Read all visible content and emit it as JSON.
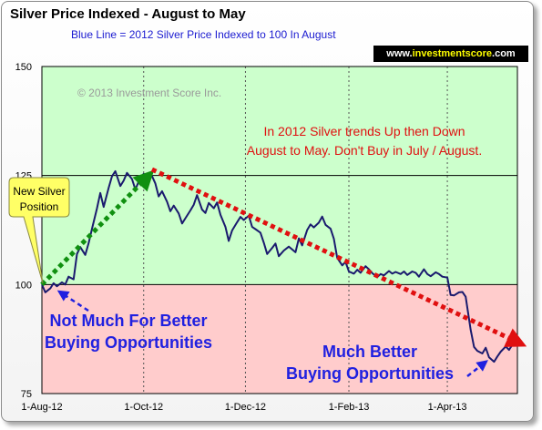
{
  "header": {
    "title": "Silver Price Indexed - August to May",
    "subtitle": "Blue Line =  2012 Silver Price Indexed to 100 In August",
    "brand_prefix": "www.",
    "brand_main": "investmentscore",
    "brand_suffix": ".com"
  },
  "colors": {
    "upper_zone": "#ccffcc",
    "lower_zone": "#ffcccc",
    "price_line": "#1a1a6e",
    "up_trend": "#109010",
    "down_trend": "#e01010",
    "annotation_blue": "#2020e0"
  },
  "chart_data": {
    "type": "line",
    "title": "Silver Price Indexed - August to May",
    "subtitle": "Blue Line =  2012 Silver Price Indexed to 100 In August",
    "xlabel": "",
    "ylabel": "",
    "xlim": [
      "2012-08-01",
      "2013-05-13"
    ],
    "ylim": [
      75,
      150
    ],
    "grid": true,
    "legend": "none",
    "x_tick_labels": [
      "1-Aug-12",
      "1-Oct-12",
      "1-Dec-12",
      "1-Feb-13",
      "1-Apr-13"
    ],
    "x_ticks": [
      "2012-08-01",
      "2012-10-01",
      "2012-12-01",
      "2013-02-01",
      "2013-04-01"
    ],
    "y_ticks": [
      75,
      100,
      125,
      150
    ],
    "zones": [
      {
        "from": 100,
        "to": 150,
        "color": "#ccffcc"
      },
      {
        "from": 75,
        "to": 100,
        "color": "#ffcccc"
      }
    ],
    "series": [
      {
        "color": "#1a1a6e",
        "x": [
          "2012-08-01",
          "2012-08-03",
          "2012-08-06",
          "2012-08-08",
          "2012-08-10",
          "2012-08-13",
          "2012-08-15",
          "2012-08-17",
          "2012-08-20",
          "2012-08-22",
          "2012-08-24",
          "2012-08-27",
          "2012-08-29",
          "2012-08-31",
          "2012-09-03",
          "2012-09-05",
          "2012-09-07",
          "2012-09-10",
          "2012-09-12",
          "2012-09-14",
          "2012-09-17",
          "2012-09-19",
          "2012-09-21",
          "2012-09-24",
          "2012-09-26",
          "2012-09-28",
          "2012-10-01",
          "2012-10-03",
          "2012-10-05",
          "2012-10-08",
          "2012-10-10",
          "2012-10-12",
          "2012-10-15",
          "2012-10-17",
          "2012-10-19",
          "2012-10-22",
          "2012-10-24",
          "2012-10-26",
          "2012-10-29",
          "2012-10-31",
          "2012-11-02",
          "2012-11-05",
          "2012-11-07",
          "2012-11-09",
          "2012-11-12",
          "2012-11-14",
          "2012-11-16",
          "2012-11-19",
          "2012-11-21",
          "2012-11-23",
          "2012-11-26",
          "2012-11-28",
          "2012-11-30",
          "2012-12-03",
          "2012-12-05",
          "2012-12-07",
          "2012-12-10",
          "2012-12-12",
          "2012-12-14",
          "2012-12-17",
          "2012-12-19",
          "2012-12-21",
          "2012-12-24",
          "2012-12-27",
          "2012-12-31",
          "2013-01-02",
          "2013-01-04",
          "2013-01-07",
          "2013-01-09",
          "2013-01-11",
          "2013-01-14",
          "2013-01-16",
          "2013-01-18",
          "2013-01-21",
          "2013-01-23",
          "2013-01-25",
          "2013-01-28",
          "2013-01-30",
          "2013-02-01",
          "2013-02-04",
          "2013-02-06",
          "2013-02-08",
          "2013-02-11",
          "2013-02-13",
          "2013-02-15",
          "2013-02-18",
          "2013-02-20",
          "2013-02-22",
          "2013-02-25",
          "2013-02-27",
          "2013-03-01",
          "2013-03-04",
          "2013-03-06",
          "2013-03-08",
          "2013-03-11",
          "2013-03-13",
          "2013-03-15",
          "2013-03-18",
          "2013-03-20",
          "2013-03-22",
          "2013-03-25",
          "2013-03-27",
          "2013-03-29",
          "2013-04-01",
          "2013-04-03",
          "2013-04-05",
          "2013-04-08",
          "2013-04-10",
          "2013-04-12",
          "2013-04-15",
          "2013-04-17",
          "2013-04-19",
          "2013-04-22",
          "2013-04-24",
          "2013-04-26",
          "2013-04-29",
          "2013-05-01",
          "2013-05-03",
          "2013-05-06",
          "2013-05-08",
          "2013-05-10"
        ],
        "values": [
          100.0,
          98.2,
          99.1,
          100.3,
          99.6,
          100.5,
          100.0,
          101.8,
          101.2,
          107.0,
          108.6,
          106.8,
          109.5,
          112.7,
          117.4,
          121.0,
          117.8,
          122.2,
          124.8,
          126.0,
          122.6,
          123.8,
          125.6,
          124.2,
          121.8,
          123.6,
          125.4,
          124.8,
          125.7,
          123.2,
          120.2,
          121.4,
          119.0,
          116.8,
          118.1,
          116.3,
          114.0,
          115.2,
          117.0,
          118.3,
          120.5,
          117.2,
          116.4,
          118.7,
          117.5,
          118.8,
          116.0,
          113.2,
          110.0,
          112.4,
          114.3,
          115.5,
          114.8,
          115.8,
          113.2,
          112.7,
          111.9,
          109.6,
          107.0,
          108.4,
          109.4,
          106.5,
          107.8,
          108.7,
          107.4,
          110.6,
          109.0,
          112.5,
          113.8,
          113.1,
          114.2,
          115.6,
          113.7,
          112.8,
          110.5,
          106.1,
          104.4,
          105.2,
          103.0,
          102.5,
          103.4,
          102.7,
          104.2,
          103.5,
          102.6,
          101.7,
          102.4,
          102.1,
          103.1,
          102.5,
          102.9,
          102.4,
          103.0,
          102.2,
          103.0,
          102.7,
          101.8,
          103.5,
          102.4,
          101.9,
          102.8,
          102.4,
          101.8,
          101.6,
          97.6,
          97.5,
          98.2,
          98.3,
          97.2,
          89.6,
          85.7,
          84.8,
          84.2,
          85.5,
          83.3,
          82.3,
          83.5,
          84.6,
          85.8,
          85.0,
          86.2
        ]
      }
    ],
    "trend_arrows": [
      {
        "name": "up-trend",
        "from": {
          "x": "2012-08-01",
          "y": 100.0
        },
        "to": {
          "x": "2012-10-03",
          "y": 124.6
        },
        "color": "#109010"
      },
      {
        "name": "down-trend",
        "from": {
          "x": "2012-10-06",
          "y": 126.4
        },
        "to": {
          "x": "2013-05-13",
          "y": 86.8
        },
        "color": "#e01010"
      }
    ]
  },
  "annotations": {
    "copyright": "© 2013 Investment Score Inc.",
    "trend_line_1": "In 2012 Silver trends Up then Down",
    "trend_line_2": "August to May.  Don't Buy in July / August.",
    "callout_line_1": "New Silver",
    "callout_line_2": "Position",
    "left_line_1": "Not Much For Better",
    "left_line_2": "Buying Opportunities",
    "right_line_1": "Much Better",
    "right_line_2": "Buying Opportunities"
  }
}
